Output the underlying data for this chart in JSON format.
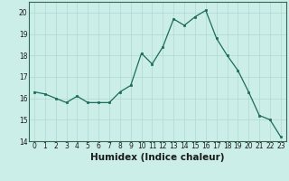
{
  "x": [
    0,
    1,
    2,
    3,
    4,
    5,
    6,
    7,
    8,
    9,
    10,
    11,
    12,
    13,
    14,
    15,
    16,
    17,
    18,
    19,
    20,
    21,
    22,
    23
  ],
  "y": [
    16.3,
    16.2,
    16.0,
    15.8,
    16.1,
    15.8,
    15.8,
    15.8,
    16.3,
    16.6,
    18.1,
    17.6,
    18.4,
    19.7,
    19.4,
    19.8,
    20.1,
    18.8,
    18.0,
    17.3,
    16.3,
    15.2,
    15.0,
    14.2
  ],
  "xlabel": "Humidex (Indice chaleur)",
  "line_color": "#1c6b5c",
  "marker_color": "#1c6b5c",
  "bg_color": "#cceee8",
  "grid_color": "#b0d8d2",
  "axis_color": "#336655",
  "ylim": [
    14,
    20.5
  ],
  "xlim": [
    -0.5,
    23.5
  ],
  "yticks": [
    14,
    15,
    16,
    17,
    18,
    19,
    20
  ],
  "xticks": [
    0,
    1,
    2,
    3,
    4,
    5,
    6,
    7,
    8,
    9,
    10,
    11,
    12,
    13,
    14,
    15,
    16,
    17,
    18,
    19,
    20,
    21,
    22,
    23
  ],
  "tick_fontsize": 5.5,
  "xlabel_fontsize": 7.5
}
